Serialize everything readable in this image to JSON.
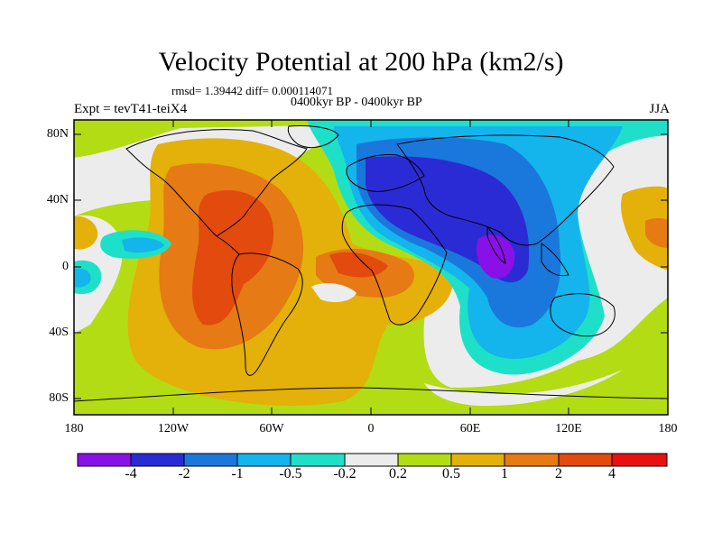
{
  "title": "Velocity Potential at 200 hPa (km2/s)",
  "subtitle": "rmsd= 1.39442 diff= 0.000114071",
  "period": "0400kyr BP - 0400kyr BP",
  "expt": "Expt = tevT41-teiX4",
  "season": "JJA",
  "lat_labels": [
    "80N",
    "40N",
    "0",
    "40S",
    "80S"
  ],
  "lon_labels": [
    "180",
    "120W",
    "60W",
    "0",
    "60E",
    "120E",
    "180"
  ],
  "colorbar": {
    "labels": [
      "-4",
      "-2",
      "-1",
      "-0.5",
      "-0.2",
      "0.2",
      "0.5",
      "1",
      "2",
      "4"
    ],
    "colors": [
      "#8a10e8",
      "#2b2bd6",
      "#1a78dc",
      "#14b4ec",
      "#1ee0c8",
      "#ececec",
      "#b4dc14",
      "#e4b00a",
      "#e67a14",
      "#e24a0e",
      "#e81010"
    ]
  }
}
